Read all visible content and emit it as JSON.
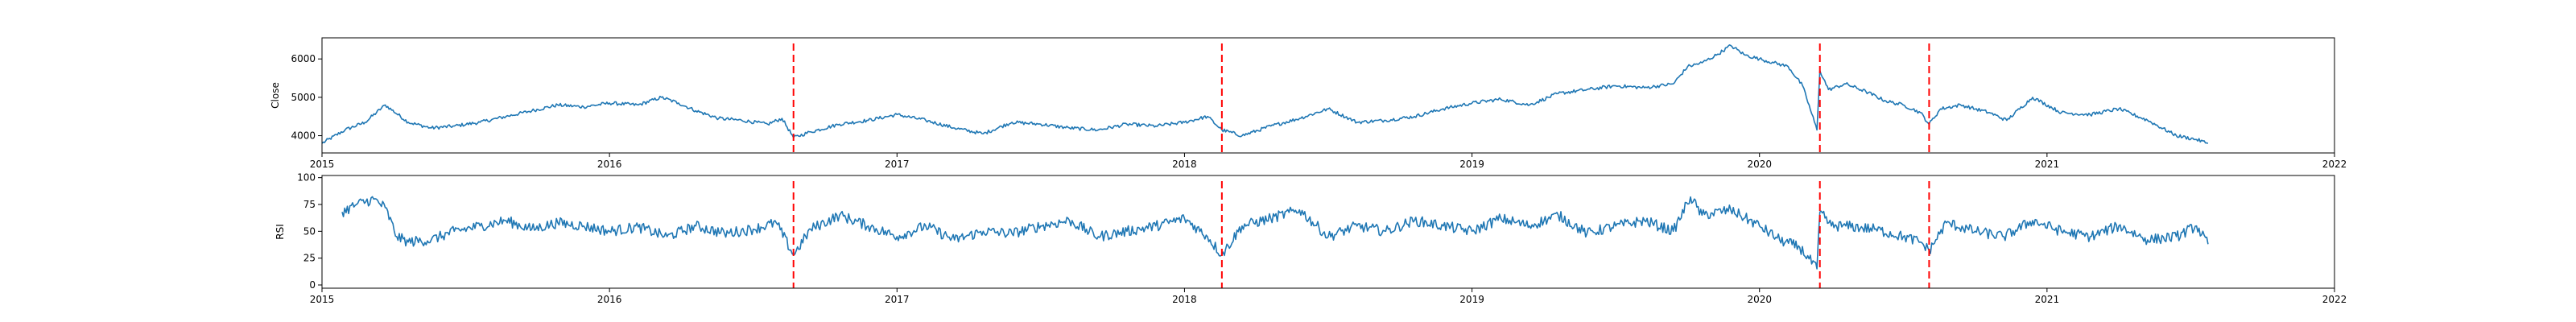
{
  "colors": {
    "series": "#1f77b4",
    "event_line": "#ff0000",
    "axes": "#000000",
    "background": "#ffffff"
  },
  "chart_data": [
    {
      "type": "line",
      "name": "close",
      "xlabel": "",
      "ylabel": "Close",
      "xlim": [
        2015.0,
        2022.0
      ],
      "ylim": [
        3550,
        6550
      ],
      "x_ticks": [
        2015,
        2016,
        2017,
        2018,
        2019,
        2020,
        2021,
        2022
      ],
      "x_tick_labels": [
        "2015",
        "2016",
        "2017",
        "2018",
        "2019",
        "2020",
        "2021",
        "2022"
      ],
      "y_ticks": [
        4000,
        5000,
        6000
      ],
      "y_tick_labels": [
        "4000",
        "5000",
        "6000"
      ],
      "event_lines_x": [
        2016.64,
        2018.13,
        2020.21,
        2020.59
      ],
      "series": [
        {
          "name": "Close",
          "x": [
            2015.0,
            2015.08,
            2015.15,
            2015.22,
            2015.3,
            2015.38,
            2015.46,
            2015.55,
            2015.64,
            2015.73,
            2015.82,
            2015.91,
            2016.0,
            2016.1,
            2016.18,
            2016.24,
            2016.3,
            2016.38,
            2016.46,
            2016.55,
            2016.6,
            2016.64,
            2016.7,
            2016.8,
            2016.9,
            2017.0,
            2017.1,
            2017.2,
            2017.3,
            2017.4,
            2017.5,
            2017.6,
            2017.7,
            2017.8,
            2017.9,
            2018.0,
            2018.08,
            2018.13,
            2018.2,
            2018.3,
            2018.4,
            2018.5,
            2018.6,
            2018.7,
            2018.8,
            2018.9,
            2019.0,
            2019.1,
            2019.2,
            2019.3,
            2019.4,
            2019.5,
            2019.6,
            2019.7,
            2019.75,
            2019.8,
            2019.85,
            2019.9,
            2019.95,
            2020.0,
            2020.05,
            2020.1,
            2020.15,
            2020.2,
            2020.21,
            2020.24,
            2020.3,
            2020.37,
            2020.44,
            2020.5,
            2020.56,
            2020.59,
            2020.63,
            2020.7,
            2020.8,
            2020.86,
            2020.95,
            2021.05,
            2021.15,
            2021.25,
            2021.35,
            2021.45,
            2021.52,
            2021.56
          ],
          "y": [
            3800,
            4150,
            4350,
            4800,
            4350,
            4200,
            4250,
            4350,
            4500,
            4650,
            4800,
            4750,
            4850,
            4800,
            5000,
            4850,
            4650,
            4450,
            4400,
            4300,
            4450,
            3950,
            4100,
            4300,
            4400,
            4550,
            4400,
            4200,
            4050,
            4350,
            4300,
            4200,
            4150,
            4300,
            4250,
            4350,
            4500,
            4150,
            4000,
            4250,
            4450,
            4700,
            4350,
            4400,
            4500,
            4700,
            4850,
            4950,
            4800,
            5100,
            5200,
            5300,
            5250,
            5350,
            5800,
            5900,
            6100,
            6350,
            6100,
            6000,
            5900,
            5800,
            5300,
            4150,
            5700,
            5200,
            5350,
            5150,
            4900,
            4800,
            4600,
            4300,
            4700,
            4800,
            4600,
            4400,
            5000,
            4600,
            4550,
            4700,
            4400,
            4000,
            3900,
            3800
          ]
        }
      ]
    },
    {
      "type": "line",
      "name": "rsi",
      "xlabel": "",
      "ylabel": "RSI",
      "xlim": [
        2015.0,
        2022.0
      ],
      "ylim": [
        -3,
        102
      ],
      "x_ticks": [
        2015,
        2016,
        2017,
        2018,
        2019,
        2020,
        2021,
        2022
      ],
      "x_tick_labels": [
        "2015",
        "2016",
        "2017",
        "2018",
        "2019",
        "2020",
        "2021",
        "2022"
      ],
      "y_ticks": [
        0,
        25,
        50,
        75,
        100
      ],
      "y_tick_labels": [
        "0",
        "25",
        "50",
        "75",
        "100"
      ],
      "event_lines_x": [
        2016.64,
        2018.13,
        2020.21,
        2020.59
      ],
      "series": [
        {
          "name": "RSI",
          "x": [
            2015.07,
            2015.12,
            2015.18,
            2015.22,
            2015.26,
            2015.3,
            2015.38,
            2015.46,
            2015.55,
            2015.64,
            2015.73,
            2015.82,
            2015.91,
            2016.0,
            2016.1,
            2016.2,
            2016.3,
            2016.4,
            2016.5,
            2016.58,
            2016.64,
            2016.7,
            2016.8,
            2016.9,
            2017.0,
            2017.1,
            2017.2,
            2017.3,
            2017.4,
            2017.5,
            2017.6,
            2017.7,
            2017.8,
            2017.9,
            2018.0,
            2018.08,
            2018.13,
            2018.2,
            2018.3,
            2018.4,
            2018.5,
            2018.6,
            2018.7,
            2018.8,
            2018.9,
            2019.0,
            2019.1,
            2019.2,
            2019.3,
            2019.4,
            2019.5,
            2019.6,
            2019.7,
            2019.76,
            2019.8,
            2019.9,
            2020.0,
            2020.07,
            2020.14,
            2020.2,
            2020.21,
            2020.25,
            2020.3,
            2020.4,
            2020.5,
            2020.56,
            2020.59,
            2020.65,
            2020.75,
            2020.85,
            2020.95,
            2021.05,
            2021.15,
            2021.25,
            2021.35,
            2021.45,
            2021.52,
            2021.56
          ],
          "y": [
            68,
            75,
            80,
            72,
            45,
            40,
            42,
            50,
            55,
            60,
            52,
            58,
            55,
            50,
            54,
            45,
            55,
            48,
            52,
            58,
            28,
            52,
            65,
            55,
            45,
            55,
            42,
            50,
            48,
            55,
            60,
            45,
            50,
            55,
            62,
            45,
            28,
            55,
            62,
            70,
            45,
            55,
            50,
            60,
            55,
            50,
            62,
            55,
            65,
            48,
            55,
            60,
            50,
            82,
            65,
            70,
            55,
            42,
            35,
            15,
            68,
            55,
            55,
            52,
            45,
            40,
            32,
            58,
            50,
            45,
            60,
            50,
            45,
            55,
            42,
            45,
            55,
            38
          ]
        }
      ]
    }
  ]
}
